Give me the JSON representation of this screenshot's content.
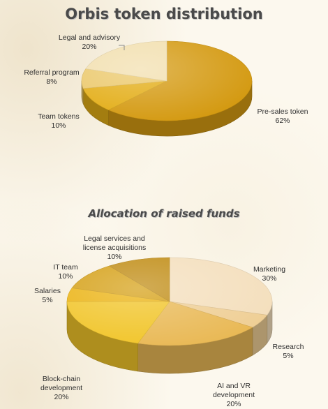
{
  "chart_data": [
    {
      "type": "pie",
      "title": "Orbis token distribution",
      "slices": [
        {
          "label": "Pre-sales token",
          "value": 62,
          "value_label": "62%",
          "color": "#d49a12"
        },
        {
          "label": "Team tokens",
          "value": 10,
          "value_label": "10%",
          "color": "#e3ad16"
        },
        {
          "label": "Referral program",
          "value": 8,
          "value_label": "8%",
          "color": "#ebc86a"
        },
        {
          "label": "Legal and advisory",
          "value": 20,
          "value_label": "20%",
          "color": "#f2dfae"
        }
      ],
      "legend": "none"
    },
    {
      "type": "pie",
      "title": "Allocation of raised funds",
      "slices": [
        {
          "label": "Marketing",
          "value": 30,
          "value_label": "30%",
          "color": "#f4dfbd"
        },
        {
          "label": "Research",
          "value": 5,
          "value_label": "5%",
          "color": "#efcf96"
        },
        {
          "label": "AI and VR development",
          "value": 20,
          "value_label": "20%",
          "color": "#e9b956"
        },
        {
          "label": "Block-chain development",
          "value": 20,
          "value_label": "20%",
          "color": "#f1c52a"
        },
        {
          "label": "Salaries",
          "value": 5,
          "value_label": "5%",
          "color": "#ebb313"
        },
        {
          "label": "IT team",
          "value": 10,
          "value_label": "10%",
          "color": "#d5a016"
        },
        {
          "label": "Legal services and license acquisitions",
          "value": 10,
          "value_label": "10%",
          "color": "#c08c14"
        }
      ],
      "legend": "none"
    }
  ]
}
